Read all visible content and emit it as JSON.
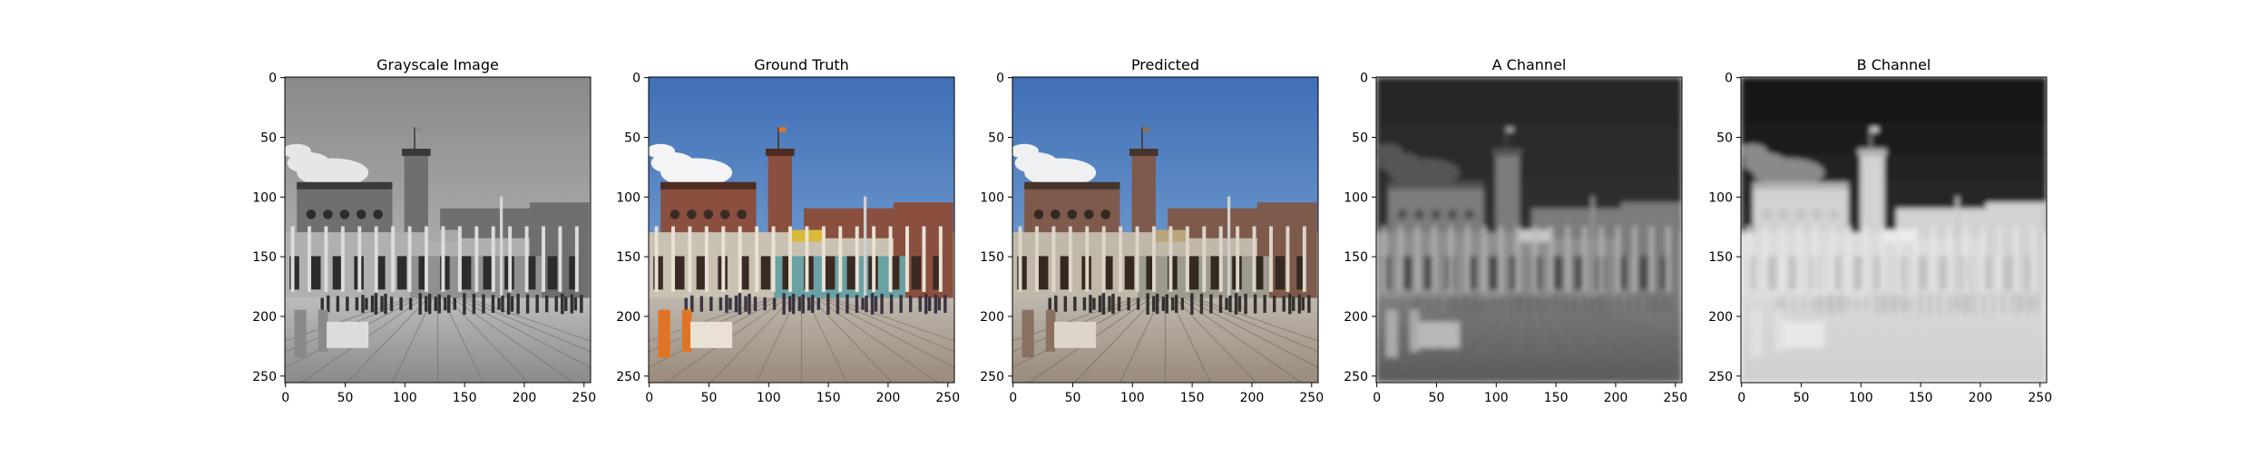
{
  "figure": {
    "panels": [
      {
        "title": "Grayscale Image",
        "mode": "gray"
      },
      {
        "title": "Ground Truth",
        "mode": "color"
      },
      {
        "title": "Predicted",
        "mode": "pred"
      },
      {
        "title": "A Channel",
        "mode": "achan"
      },
      {
        "title": "B Channel",
        "mode": "bchan"
      }
    ],
    "y_ticks": [
      "0",
      "50",
      "100",
      "150",
      "200",
      "250"
    ],
    "x_ticks": [
      "0",
      "50",
      "100",
      "150",
      "200",
      "250"
    ]
  }
}
